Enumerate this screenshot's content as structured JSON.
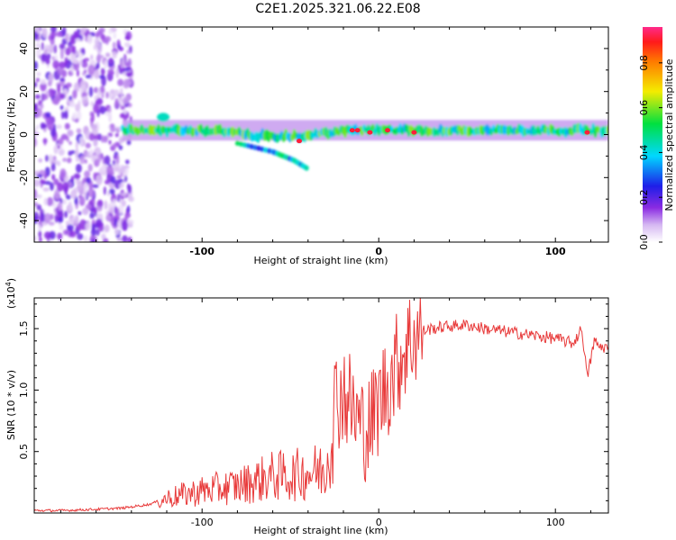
{
  "chart_data": [
    {
      "type": "heatmap",
      "title": "C2E1.2025.321.06.22.E08",
      "xlabel": "Height of straight line (km)",
      "ylabel": "Frequency (Hz)",
      "xlim": [
        -195,
        130
      ],
      "ylim": [
        -50,
        50
      ],
      "xticks": [
        -100,
        0,
        100
      ],
      "xtick_labels": [
        "-100",
        "0",
        "100"
      ],
      "yticks": [
        -40,
        -20,
        0,
        20,
        40
      ],
      "ytick_labels": [
        "-40",
        "-20",
        "0",
        "20",
        "40"
      ],
      "colorbar": {
        "label": "Normalized spectral amplitude",
        "range": [
          0,
          0.96
        ],
        "ticks": [
          0,
          0.2,
          0.4,
          0.6,
          0.8
        ],
        "tick_labels": [
          "0.0",
          "0.2",
          "0.4",
          "0.6",
          "0.8"
        ]
      },
      "features": [
        {
          "name": "scattered-noise-region",
          "x_range": [
            -195,
            -140
          ],
          "freq_range": [
            -50,
            50
          ],
          "amplitude": 0.1
        },
        {
          "name": "main-signal-band",
          "x_range": [
            -145,
            130
          ],
          "center_freq_hz": 2,
          "half_width_hz": 3,
          "amplitude": 0.5
        },
        {
          "name": "descending-branch",
          "x": [
            -80,
            -60,
            -48,
            -40
          ],
          "freq_hz": [
            -4,
            -8,
            -12,
            -16
          ],
          "amplitude": 0.4
        },
        {
          "name": "upper-blob",
          "x": -122,
          "freq_hz": 8,
          "amplitude": 0.45
        },
        {
          "name": "peak-cluster",
          "x": [
            -45,
            -15,
            -12,
            -5,
            5,
            20,
            118
          ],
          "freq_hz": [
            -3,
            2,
            2,
            1,
            2,
            1,
            1
          ],
          "amplitude": 0.95
        }
      ]
    },
    {
      "type": "line",
      "title": "",
      "xlabel": "Height of straight line (km)",
      "ylabel": "SNR (10 * v/v)",
      "y_multiplier": "(x10",
      "y_multiplier_exp": "4",
      "y_multiplier_close": ")",
      "xlim": [
        -195,
        130
      ],
      "ylim": [
        0,
        1.75
      ],
      "xticks": [
        -100,
        0,
        100
      ],
      "xtick_labels": [
        "-100",
        "0",
        "100"
      ],
      "yticks": [
        0.5,
        1.0,
        1.5
      ],
      "ytick_labels": [
        "0.5",
        "1.0",
        "1.5"
      ],
      "series": [
        {
          "name": "SNR",
          "color": "#e83a3a",
          "x": [
            -195,
            -180,
            -160,
            -145,
            -130,
            -120,
            -110,
            -100,
            -90,
            -80,
            -70,
            -60,
            -50,
            -40,
            -30,
            -25,
            -20,
            -15,
            -10,
            -5,
            0,
            5,
            10,
            15,
            20,
            25,
            30,
            40,
            50,
            60,
            70,
            80,
            90,
            100,
            110,
            115,
            118,
            122,
            125,
            130
          ],
          "y": [
            0.02,
            0.02,
            0.03,
            0.04,
            0.07,
            0.12,
            0.15,
            0.18,
            0.2,
            0.22,
            0.26,
            0.3,
            0.3,
            0.33,
            0.35,
            0.9,
            1.0,
            0.85,
            0.7,
            0.7,
            0.9,
            1.05,
            1.2,
            1.35,
            1.45,
            1.48,
            1.5,
            1.52,
            1.53,
            1.5,
            1.48,
            1.46,
            1.44,
            1.42,
            1.38,
            1.5,
            1.1,
            1.4,
            1.35,
            1.35
          ]
        }
      ]
    }
  ],
  "colors": {
    "line": "#e83a3a",
    "background": "#ffffff",
    "frame": "#000000"
  }
}
